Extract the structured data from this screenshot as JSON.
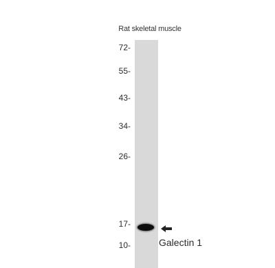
{
  "sample": {
    "label": "Rat skeletal muscle"
  },
  "markers": [
    {
      "label": "72-"
    },
    {
      "label": "55-"
    },
    {
      "label": "43-"
    },
    {
      "label": "34-"
    },
    {
      "label": "26-"
    },
    {
      "label": "17-"
    },
    {
      "label": "10-"
    }
  ],
  "band": {
    "label": "Galectin 1",
    "color": "#0d0d0d"
  },
  "lane": {
    "color": "#d9d9d9"
  },
  "icons": {
    "arrow": "arrow-left-icon"
  }
}
